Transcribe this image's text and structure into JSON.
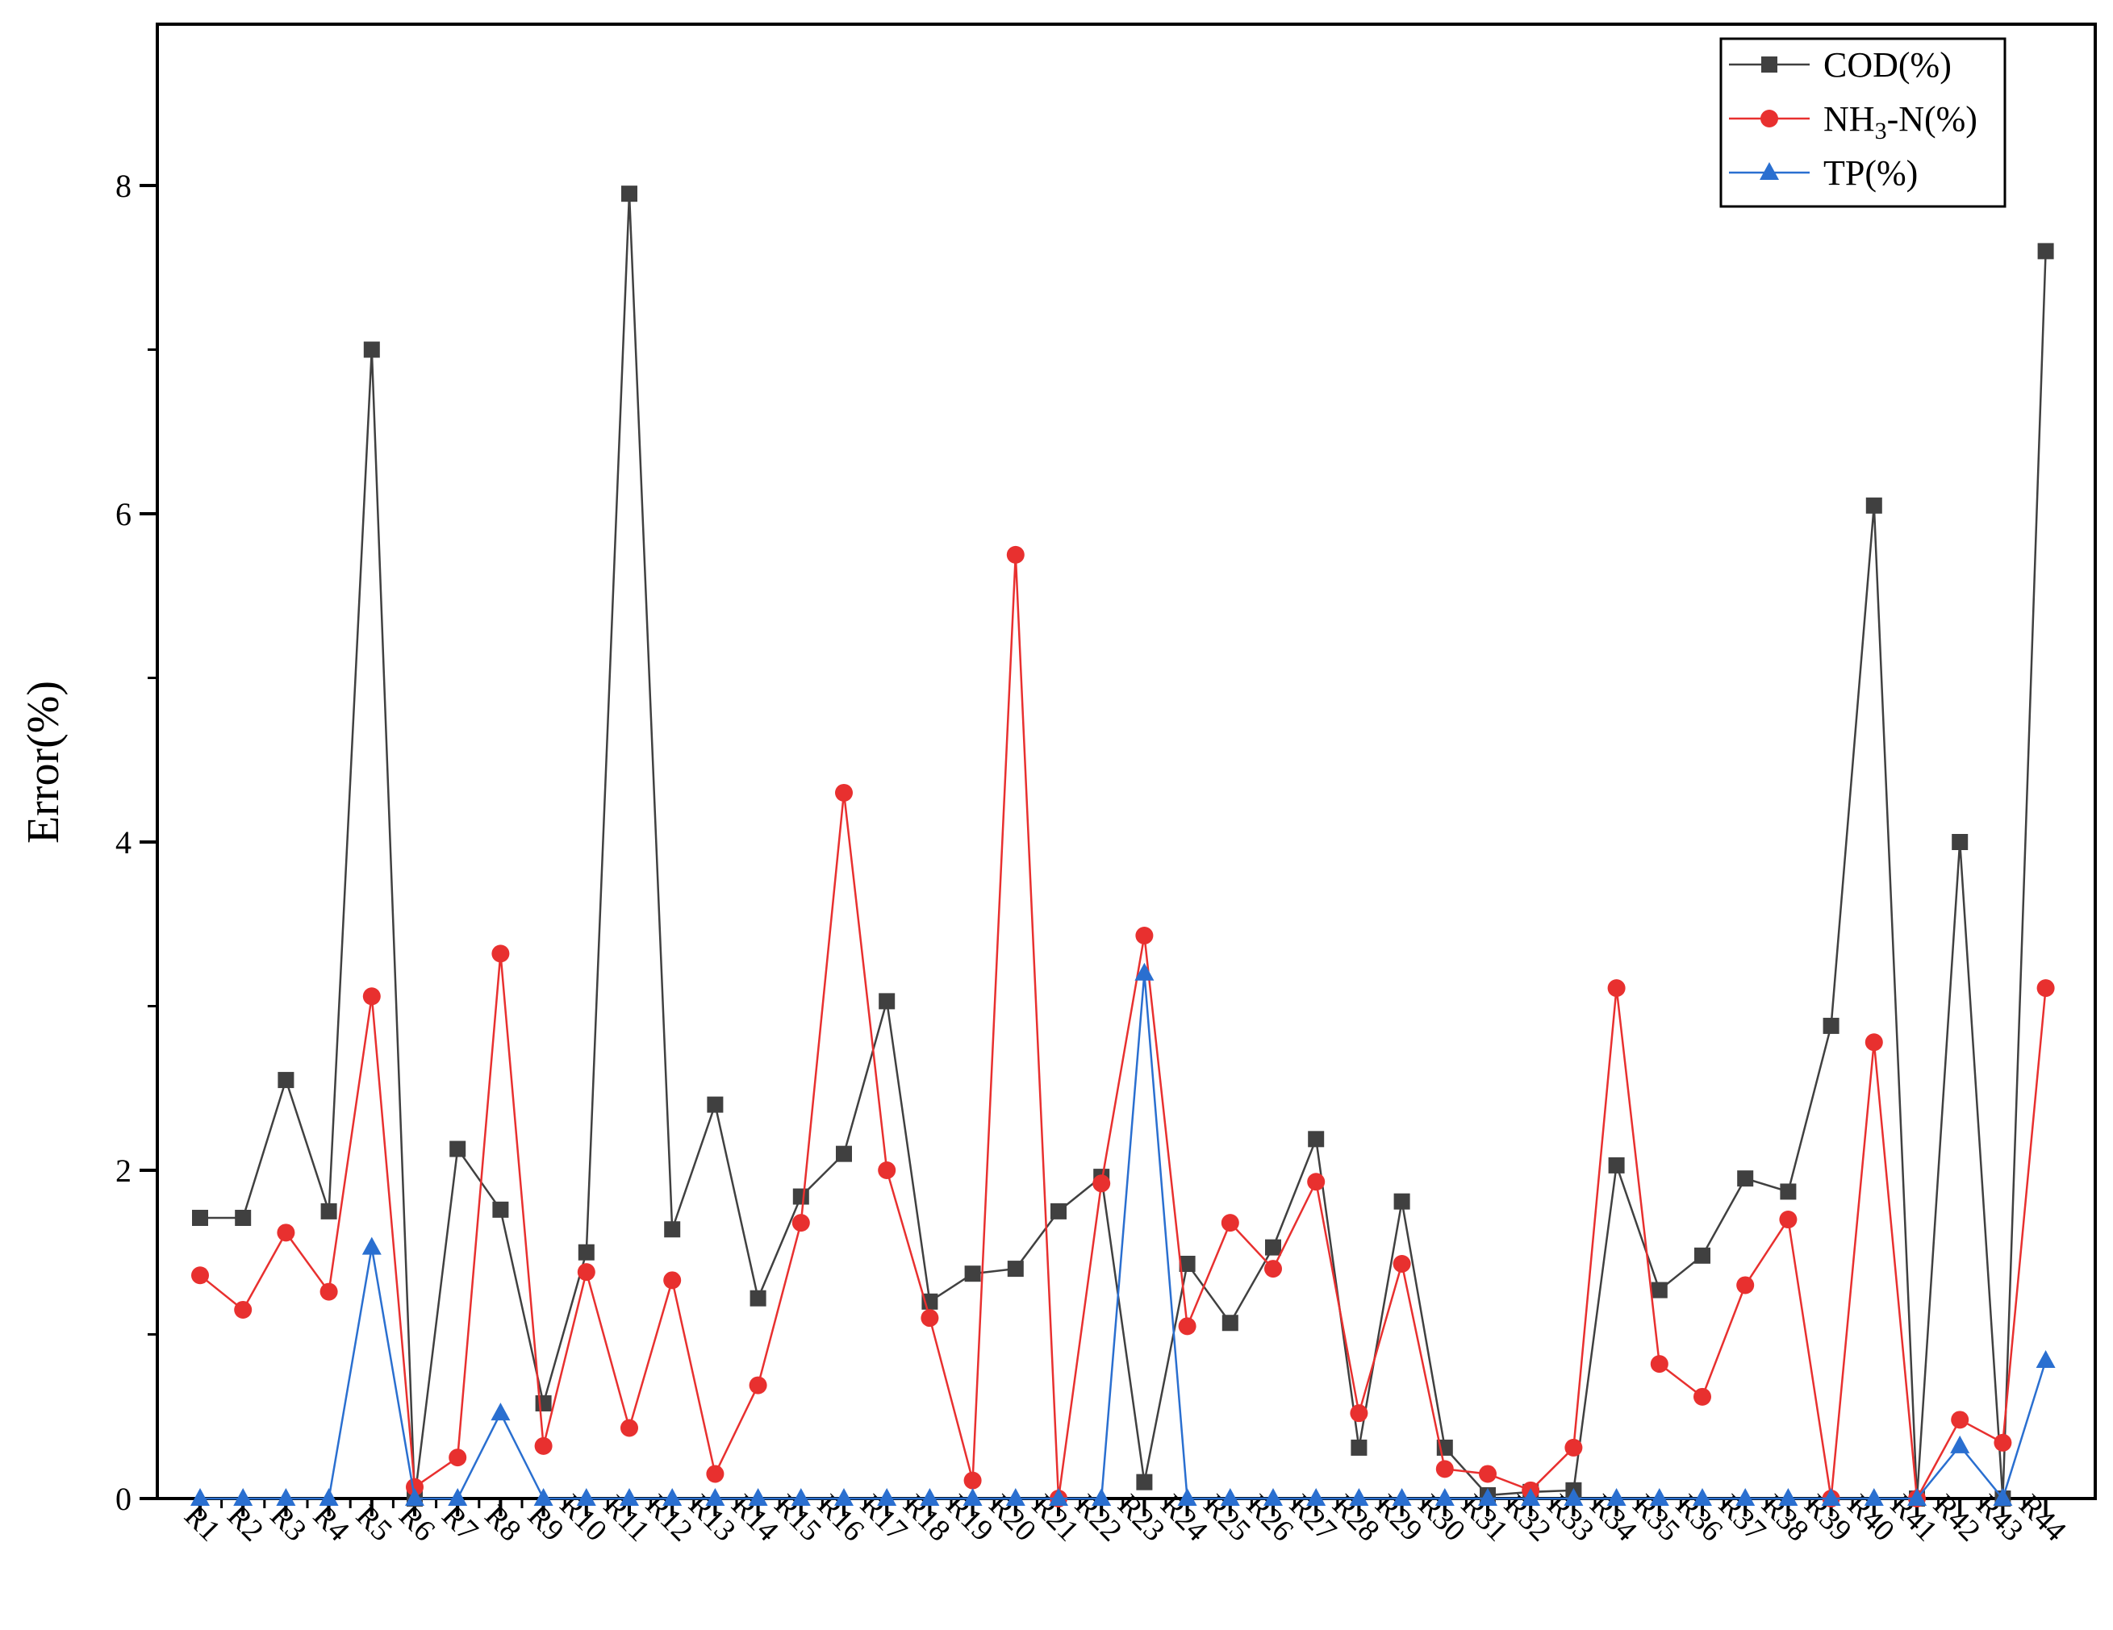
{
  "chart_data": {
    "type": "line",
    "title": "",
    "xlabel": "",
    "ylabel": "Error(%)",
    "ylim": [
      0,
      9
    ],
    "yticks": [
      0,
      2,
      4,
      6,
      8
    ],
    "grid": false,
    "legend_position": "top-right",
    "categories": [
      "R1",
      "R2",
      "R3",
      "R4",
      "R5",
      "R6",
      "R7",
      "R8",
      "R9",
      "R10",
      "R11",
      "R12",
      "R13",
      "R14",
      "R15",
      "R16",
      "R17",
      "R18",
      "R19",
      "R20",
      "R21",
      "R22",
      "R23",
      "R24",
      "R25",
      "R26",
      "R27",
      "R28",
      "R29",
      "R30",
      "R31",
      "R32",
      "R33",
      "R34",
      "R35",
      "R36",
      "R37",
      "R38",
      "R39",
      "R40",
      "R41",
      "R42",
      "R43",
      "R44"
    ],
    "series": [
      {
        "name_main": "COD(%)",
        "name_sub": "",
        "name_tail": "",
        "color": "#404040",
        "marker": "square",
        "values": [
          1.71,
          1.71,
          2.55,
          1.75,
          7.0,
          0.0,
          2.13,
          1.76,
          0.58,
          1.5,
          7.95,
          1.64,
          2.4,
          1.22,
          1.84,
          2.1,
          3.03,
          1.2,
          1.37,
          1.4,
          1.75,
          1.96,
          0.1,
          1.43,
          1.07,
          1.53,
          2.19,
          0.31,
          1.81,
          0.31,
          0.02,
          0.04,
          0.05,
          2.03,
          1.27,
          1.48,
          1.95,
          1.87,
          2.88,
          6.05,
          0.0,
          4.0,
          0.0,
          7.6
        ]
      },
      {
        "name_main": "NH",
        "name_sub": "3",
        "name_tail": "-N(%)",
        "color": "#e8302f",
        "marker": "circle",
        "values": [
          1.36,
          1.15,
          1.62,
          1.26,
          3.06,
          0.07,
          0.25,
          3.32,
          0.32,
          1.38,
          0.43,
          1.33,
          0.15,
          0.69,
          1.68,
          4.3,
          2.0,
          1.1,
          0.11,
          5.75,
          0.0,
          1.92,
          3.43,
          1.05,
          1.68,
          1.4,
          1.93,
          0.52,
          1.43,
          0.18,
          0.15,
          0.05,
          0.31,
          3.11,
          0.82,
          0.62,
          1.3,
          1.7,
          0.0,
          2.78,
          0.0,
          0.48,
          0.34,
          3.11
        ]
      },
      {
        "name_main": "TP(%)",
        "name_sub": "",
        "name_tail": "",
        "color": "#2a6fd0",
        "marker": "triangle",
        "values": [
          0,
          0,
          0,
          0,
          1.53,
          0,
          0,
          0.52,
          0,
          0,
          0,
          0,
          0,
          0,
          0,
          0,
          0,
          0,
          0,
          0,
          0,
          0,
          3.2,
          0,
          0,
          0,
          0,
          0,
          0,
          0,
          0,
          0,
          0,
          0,
          0,
          0,
          0,
          0,
          0,
          0,
          0,
          0.32,
          0,
          0.84
        ]
      }
    ]
  }
}
